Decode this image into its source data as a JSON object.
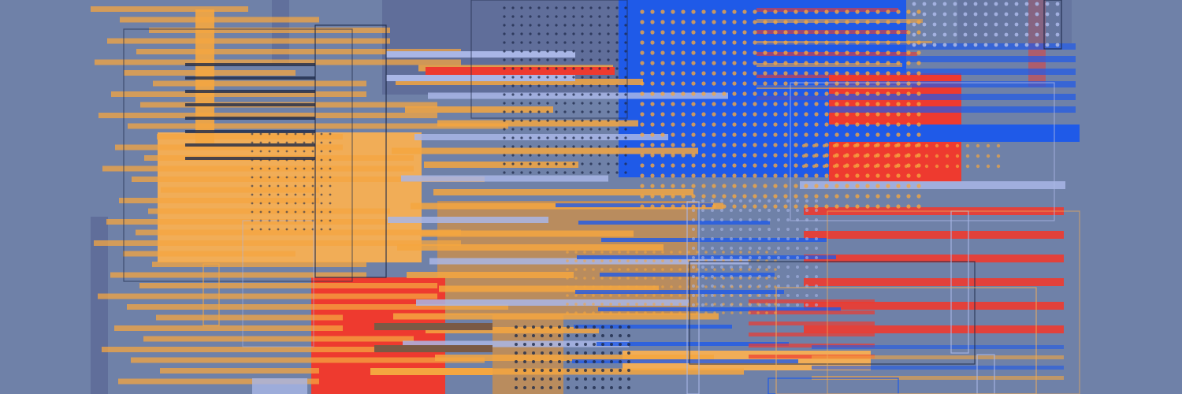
{
  "palette": {
    "background": "#6f81a8",
    "orange": "#f4a640",
    "light_orange": "#f1ad57",
    "tan": "#b98c5e",
    "red": "#ee3a2f",
    "blue": "#1f5ae8",
    "periwinkle": "#a9b6e6",
    "slate": "#5e6c98",
    "navy": "#1e2a4a",
    "brown": "#7a5a45"
  },
  "elements": {
    "background": "abstract-glitch-background",
    "stripes": "horizontal-stripe-group",
    "blocks": "color-block-group",
    "dots": "dot-matrix-group",
    "outlines": "outline-frame-group"
  }
}
